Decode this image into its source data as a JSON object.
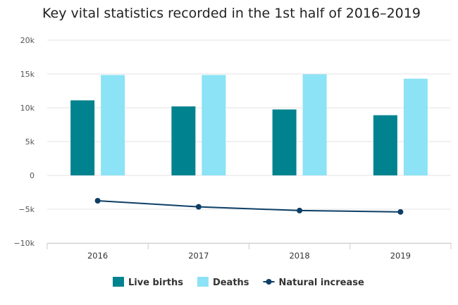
{
  "chart_data": {
    "type": "bar",
    "title": "Key vital statistics recorded in the 1st half of 2016–2019",
    "categories": [
      "2016",
      "2017",
      "2018",
      "2019"
    ],
    "ylim": [
      -10000,
      20000
    ],
    "yticks": [
      -10000,
      -5000,
      0,
      5000,
      10000,
      15000,
      20000
    ],
    "ytick_labels": [
      "−10k",
      "−5k",
      "0",
      "5k",
      "10k",
      "15k",
      "20k"
    ],
    "grid": true,
    "legend_position": "bottom",
    "series": [
      {
        "name": "Live births",
        "type": "bar",
        "color": "#00838f",
        "values": [
          11100,
          10200,
          9750,
          8900
        ]
      },
      {
        "name": "Deaths",
        "type": "bar",
        "color": "#8be3f5",
        "values": [
          14850,
          14850,
          14950,
          14300
        ]
      },
      {
        "name": "Natural increase",
        "type": "line",
        "color": "#0d3f66",
        "values": [
          -3750,
          -4650,
          -5200,
          -5400
        ]
      }
    ]
  }
}
